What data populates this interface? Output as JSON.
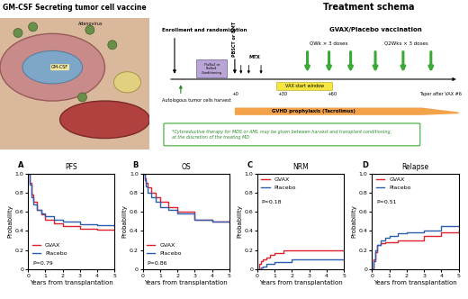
{
  "illustration": {
    "title": "GM-CSF Secreting tumor cell vaccine",
    "labels": [
      "Adenovirus",
      "GM-CSF"
    ]
  },
  "schema": {
    "title": "Treatment schema",
    "enrollment": "Enrollment and randomization",
    "transplant": "PBSCT or BMT",
    "conditioning": "FluBu2 or FluBu4 Conditioning",
    "mtx": "MTX",
    "vaccination": "GVAX/Placebo vaccination",
    "weekly": "QWk × 3 doses",
    "biweekly": "Q2Wks × 3 doses",
    "window": "VAX start window",
    "days": [
      "+0",
      "+30",
      "+60"
    ],
    "gvhd": "GVHD prophylaxis (Tacrolimus)",
    "taper": "Taper after VAX #6",
    "harvest": "Autologous tumor cells harvest",
    "footnote_lines": [
      "*Cytoreductive therapy for MDS or AML may be given between harvest and transplant conditioning,",
      "at the discretion of the treating MD"
    ]
  },
  "chart_data": [
    {
      "type": "line",
      "panel": "A",
      "title": "PFS",
      "annotation": "P=0.79",
      "legend": "lower left",
      "x_label": "Years from transplantation",
      "y_label": "Probability",
      "x": [
        0,
        0.1,
        0.2,
        0.3,
        0.5,
        0.75,
        1,
        1.5,
        2,
        3,
        4,
        5
      ],
      "series": [
        {
          "name": "GVAX",
          "color": "#e0202a",
          "values": [
            1.0,
            0.9,
            0.78,
            0.7,
            0.62,
            0.57,
            0.52,
            0.48,
            0.45,
            0.42,
            0.41,
            0.4
          ]
        },
        {
          "name": "Placebo",
          "color": "#2a5db0",
          "values": [
            1.0,
            0.88,
            0.75,
            0.68,
            0.62,
            0.58,
            0.55,
            0.52,
            0.5,
            0.47,
            0.46,
            0.45
          ]
        }
      ],
      "xlim": [
        0,
        5
      ],
      "ylim": [
        0,
        1.0
      ],
      "xticks": [
        0,
        1,
        2,
        3,
        4,
        5
      ],
      "yticks": [
        0,
        0.2,
        0.4,
        0.6,
        0.8,
        1.0
      ]
    },
    {
      "type": "line",
      "panel": "B",
      "title": "OS",
      "annotation": "P=0.86",
      "legend": "lower left",
      "x_label": "Years from transplantation",
      "y_label": "Probability",
      "x": [
        0,
        0.1,
        0.2,
        0.3,
        0.5,
        0.75,
        1,
        1.5,
        2,
        3,
        4,
        5
      ],
      "series": [
        {
          "name": "GVAX",
          "color": "#e0202a",
          "values": [
            1.0,
            0.95,
            0.9,
            0.85,
            0.8,
            0.75,
            0.7,
            0.65,
            0.6,
            0.52,
            0.5,
            0.5
          ]
        },
        {
          "name": "Placebo",
          "color": "#2a5db0",
          "values": [
            1.0,
            0.93,
            0.86,
            0.8,
            0.75,
            0.7,
            0.65,
            0.62,
            0.58,
            0.52,
            0.5,
            0.5
          ]
        }
      ],
      "xlim": [
        0,
        5
      ],
      "ylim": [
        0,
        1.0
      ],
      "xticks": [
        0,
        1,
        2,
        3,
        4,
        5
      ],
      "yticks": [
        0,
        0.2,
        0.4,
        0.6,
        0.8,
        1.0
      ]
    },
    {
      "type": "line",
      "panel": "C",
      "title": "NRM",
      "annotation": "P=0.18",
      "legend": "upper left",
      "x_label": "Years from transplantation",
      "y_label": "Probability",
      "x": [
        0,
        0.1,
        0.2,
        0.3,
        0.5,
        0.75,
        1,
        1.5,
        2,
        3,
        4,
        5
      ],
      "series": [
        {
          "name": "GVAX",
          "color": "#e0202a",
          "values": [
            0,
            0.05,
            0.08,
            0.1,
            0.12,
            0.15,
            0.17,
            0.2,
            0.2,
            0.2,
            0.2,
            0.2
          ]
        },
        {
          "name": "Placebo",
          "color": "#2a5db0",
          "values": [
            0,
            0,
            0.02,
            0.03,
            0.05,
            0.05,
            0.07,
            0.07,
            0.1,
            0.1,
            0.1,
            0.1
          ]
        }
      ],
      "xlim": [
        0,
        5
      ],
      "ylim": [
        0,
        1.0
      ],
      "xticks": [
        0,
        1,
        2,
        3,
        4,
        5
      ],
      "yticks": [
        0,
        0.2,
        0.4,
        0.6,
        0.8,
        1.0
      ]
    },
    {
      "type": "line",
      "panel": "D",
      "title": "Relapse",
      "annotation": "P=0.51",
      "legend": "upper left",
      "x_label": "Years from transplantation",
      "y_label": "Probability",
      "x": [
        0,
        0.1,
        0.2,
        0.3,
        0.5,
        0.75,
        1,
        1.5,
        2,
        3,
        4,
        5
      ],
      "series": [
        {
          "name": "GVAX",
          "color": "#e0202a",
          "values": [
            0,
            0.1,
            0.18,
            0.25,
            0.27,
            0.28,
            0.28,
            0.3,
            0.3,
            0.35,
            0.38,
            0.4
          ]
        },
        {
          "name": "Placebo",
          "color": "#2a5db0",
          "values": [
            0,
            0.08,
            0.2,
            0.25,
            0.3,
            0.33,
            0.35,
            0.37,
            0.38,
            0.4,
            0.45,
            0.45
          ]
        }
      ],
      "xlim": [
        0,
        5
      ],
      "ylim": [
        0,
        1.0
      ],
      "xticks": [
        0,
        1,
        2,
        3,
        4,
        5
      ],
      "yticks": [
        0,
        0.2,
        0.4,
        0.6,
        0.8,
        1.0
      ]
    }
  ]
}
